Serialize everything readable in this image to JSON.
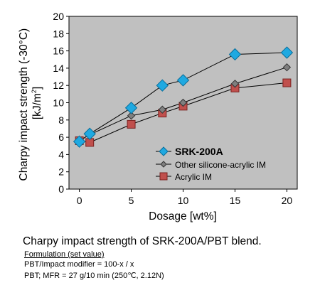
{
  "chart_data": {
    "type": "line",
    "xlabel": "Dosage [wt%]",
    "ylabel_line1": "Charpy impact strength (-30°C)",
    "ylabel_line2_base": "[kJ/m",
    "ylabel_line2_sup": "2",
    "ylabel_line2_end": "]",
    "xlim": [
      -1,
      21
    ],
    "ylim": [
      0,
      20
    ],
    "x_ticks": [
      "0",
      "5",
      "10",
      "15",
      "20"
    ],
    "y_ticks": [
      "0",
      "2",
      "4",
      "6",
      "8",
      "10",
      "12",
      "14",
      "16",
      "18",
      "20"
    ],
    "grid": false,
    "legend_position": "lower-right-inside",
    "plot_background": "#c0c0c0",
    "series": [
      {
        "name": "SRK-200A",
        "marker": "diamond",
        "color": "#1fa9e1",
        "x": [
          0,
          1,
          5,
          8,
          10,
          15,
          20
        ],
        "y": [
          5.5,
          6.4,
          9.4,
          12.0,
          12.6,
          15.6,
          15.8
        ]
      },
      {
        "name": "Other silicone-acrylic IM",
        "marker": "small-diamond",
        "color": "#7f7f7f",
        "x": [
          0,
          1,
          5,
          8,
          10,
          15,
          20
        ],
        "y": [
          5.6,
          6.3,
          8.5,
          9.2,
          10.0,
          12.2,
          14.1
        ]
      },
      {
        "name": "Acrylic IM",
        "marker": "square",
        "color": "#c0504d",
        "x": [
          0,
          1,
          5,
          8,
          10,
          15,
          20
        ],
        "y": [
          5.6,
          5.4,
          7.5,
          8.8,
          9.6,
          11.7,
          12.3
        ]
      }
    ]
  },
  "caption": "Charpy impact strength of SRK-200A/PBT blend.",
  "formulation": {
    "heading": "Formulation (set value)",
    "line1": "PBT/Impact modifier = 100-x / x",
    "line2": "PBT; MFR = 27 g/10 min (250℃, 2.12N)"
  }
}
